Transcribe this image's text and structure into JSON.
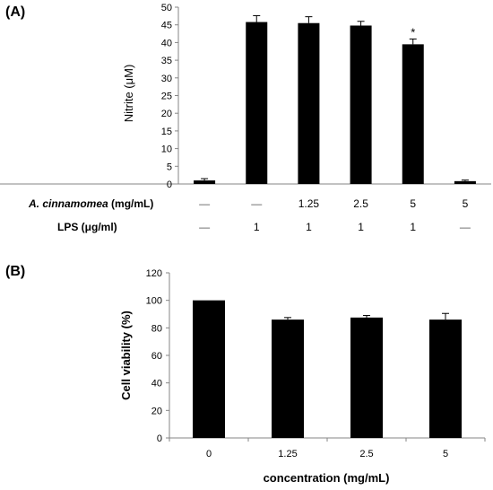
{
  "chart_data": [
    {
      "type": "bar",
      "panel_label": "(A)",
      "ylabel": "Nitrite (μM)",
      "ylim": [
        0,
        50
      ],
      "yticks": [
        0,
        5,
        10,
        15,
        20,
        25,
        30,
        35,
        40,
        45,
        50
      ],
      "grid": false,
      "values": [
        1,
        45.8,
        45.5,
        44.8,
        39.5,
        0.8
      ],
      "errors": [
        0.5,
        1.8,
        1.8,
        1.2,
        1.5,
        0.3
      ],
      "annotations": [
        "",
        "",
        "",
        "",
        "*",
        ""
      ],
      "conditions": [
        {
          "label_italic": "A. cinnamomea",
          "label_rest": " (mg/mL)",
          "values": [
            "—",
            "—",
            "1.25",
            "2.5",
            "5",
            "5"
          ]
        },
        {
          "label_italic": "",
          "label_rest": "LPS (μg/ml)",
          "values": [
            "—",
            "1",
            "1",
            "1",
            "1",
            "—"
          ]
        }
      ]
    },
    {
      "type": "bar",
      "panel_label": "(B)",
      "categories": [
        "0",
        "1.25",
        "2.5",
        "5"
      ],
      "values": [
        100,
        86,
        87.5,
        86
      ],
      "errors": [
        0,
        1.5,
        1.5,
        4.5
      ],
      "ylabel": "Cell viability (%)",
      "xlabel": "concentration (mg/mL)",
      "ylim": [
        0,
        120
      ],
      "yticks": [
        0,
        20,
        40,
        60,
        80,
        100,
        120
      ],
      "grid": false
    }
  ],
  "colors": {
    "bar": "#000000",
    "axis": "#868686",
    "error": "#000000"
  }
}
